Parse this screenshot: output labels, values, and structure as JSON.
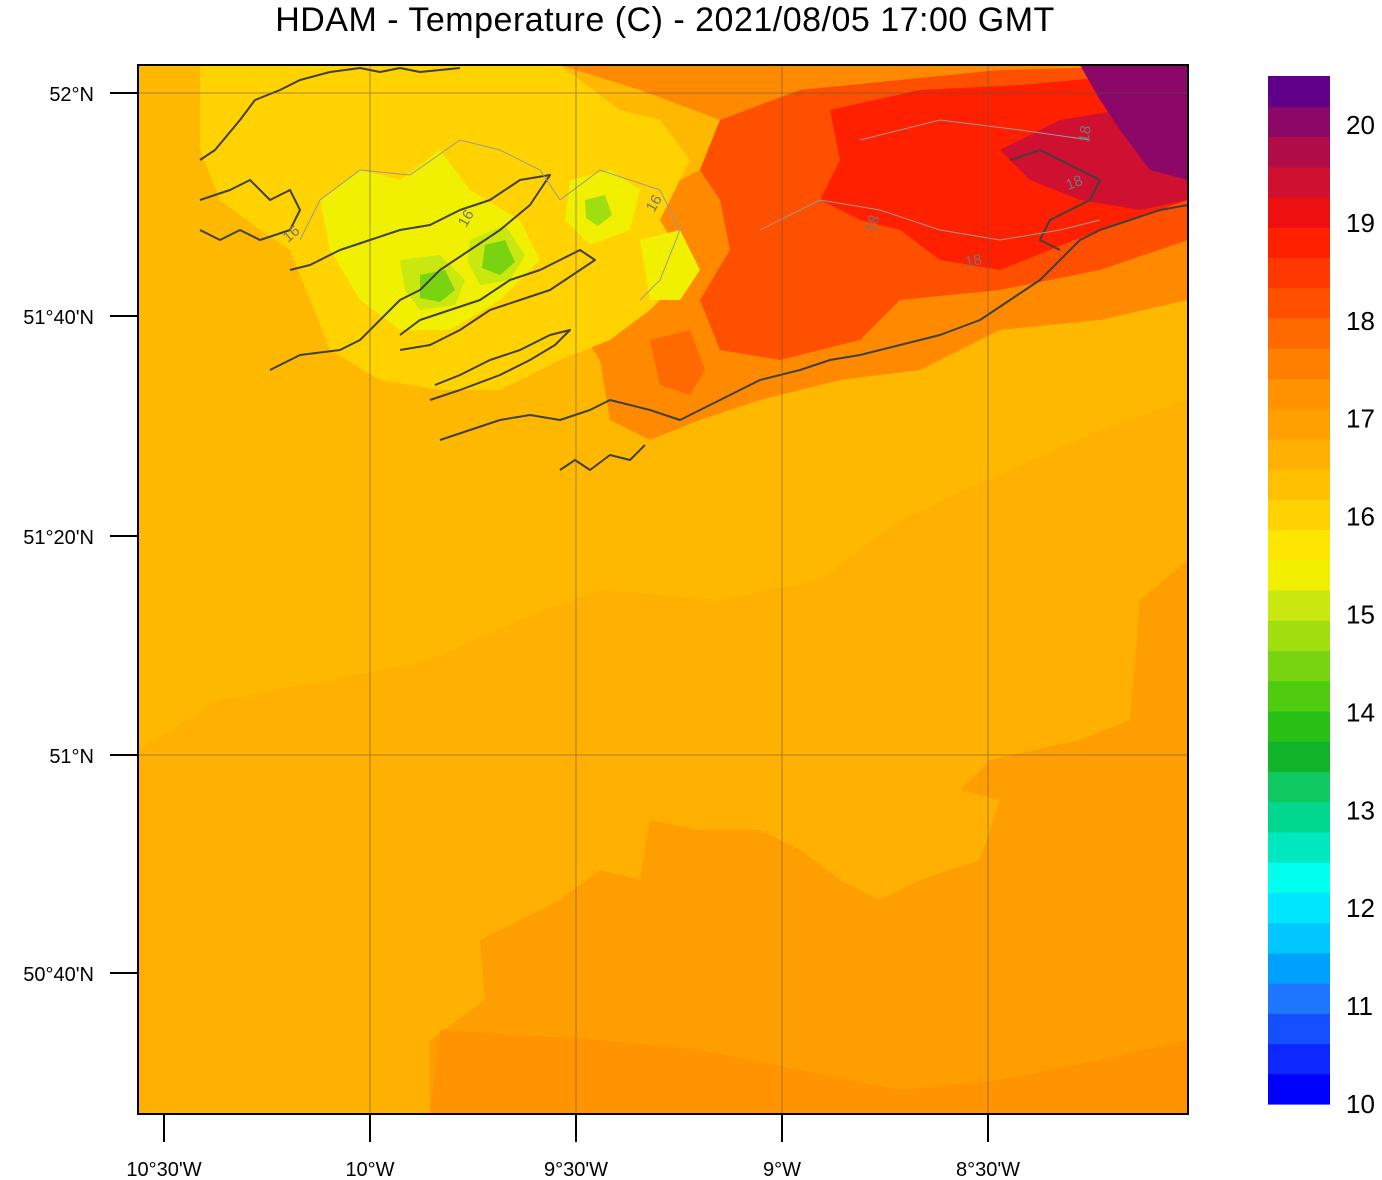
{
  "title": "HDAM - Temperature (C)  -  2021/08/05  17:00 GMT",
  "latitude_labels": [
    "52°N",
    "51°40'N",
    "51°20'N",
    "51°N",
    "50°40'N"
  ],
  "longitude_labels": [
    "10°30'W",
    "10°W",
    "9°30'W",
    "9°W",
    "8°30'W"
  ],
  "contour_labels": [
    "16",
    "16",
    "16",
    "18",
    "18",
    "18",
    "18"
  ],
  "colorbar": {
    "min": 10,
    "max": 20.5,
    "step": 0.5,
    "tick_labels": [
      "10",
      "11",
      "12",
      "13",
      "14",
      "15",
      "16",
      "17",
      "18",
      "19",
      "20"
    ],
    "colors": [
      "#0000ff",
      "#0a28ff",
      "#1450ff",
      "#1e78ff",
      "#00a0ff",
      "#00c8ff",
      "#00e6ff",
      "#00ffee",
      "#00e8c0",
      "#00d890",
      "#10c860",
      "#10b428",
      "#28c014",
      "#50cc10",
      "#78d410",
      "#a0de10",
      "#c8e810",
      "#f0f000",
      "#ffe600",
      "#ffd200",
      "#ffc000",
      "#ffb000",
      "#ffa000",
      "#ff9200",
      "#ff8000",
      "#ff6a00",
      "#ff5000",
      "#ff3800",
      "#ff2000",
      "#ee1010",
      "#d01030",
      "#b00c48",
      "#8c0868",
      "#600088"
    ]
  },
  "map": {
    "domain": "SW Ireland / Celtic Sea",
    "lon_range": [
      -10.55,
      -8.0
    ],
    "lat_range": [
      50.47,
      52.05
    ],
    "field_description": "warmest (18-20 C) over land to the NE, coolest (14 C) on western peninsulas, 16-17 C over open sea"
  }
}
